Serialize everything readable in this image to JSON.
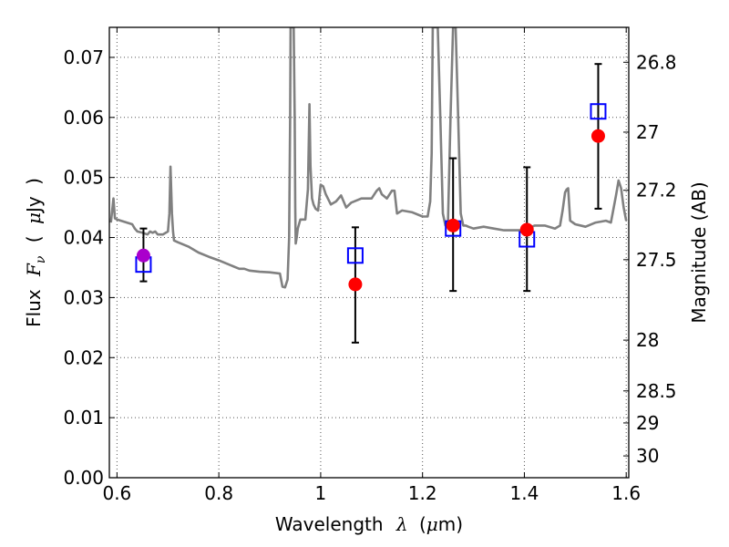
{
  "chart_data": {
    "type": "scatter",
    "xlabel_text": "Wavelength",
    "xlabel_symbol": "λ",
    "xlabel_unit_open": "(",
    "xlabel_unit_mu": "μ",
    "xlabel_unit_rest": "m)",
    "ylabel_text": "Flux",
    "ylabel_symbol": "F",
    "ylabel_subscript": "ν",
    "ylabel_unit_open": "(",
    "ylabel_unit_mu": "μ",
    "ylabel_unit_rest": "Jy",
    "ylabel_unit_close": ")",
    "y2label": "Magnitude (AB)",
    "xlim": [
      0.585,
      1.605
    ],
    "ylim": [
      0.0,
      0.075
    ],
    "grid": true,
    "x_ticks": [
      {
        "value": 0.6,
        "label": "0.6"
      },
      {
        "value": 0.8,
        "label": "0.8"
      },
      {
        "value": 1.0,
        "label": "1"
      },
      {
        "value": 1.2,
        "label": "1.2"
      },
      {
        "value": 1.4,
        "label": "1.4"
      },
      {
        "value": 1.6,
        "label": "1.6"
      }
    ],
    "y_ticks": [
      {
        "value": 0.0,
        "label": "0.00"
      },
      {
        "value": 0.01,
        "label": "0.01"
      },
      {
        "value": 0.02,
        "label": "0.02"
      },
      {
        "value": 0.03,
        "label": "0.03"
      },
      {
        "value": 0.04,
        "label": "0.04"
      },
      {
        "value": 0.05,
        "label": "0.05"
      },
      {
        "value": 0.06,
        "label": "0.06"
      },
      {
        "value": 0.07,
        "label": "0.07"
      }
    ],
    "y2_ticks": [
      {
        "mag": 26.8,
        "label": "26.8"
      },
      {
        "mag": 27.0,
        "label": "27"
      },
      {
        "mag": 27.2,
        "label": "27.2"
      },
      {
        "mag": 27.5,
        "label": "27.5"
      },
      {
        "mag": 28.0,
        "label": "28"
      },
      {
        "mag": 28.5,
        "label": "28.5"
      },
      {
        "mag": 29.0,
        "label": "29"
      },
      {
        "mag": 30.0,
        "label": "30"
      }
    ],
    "series": [
      {
        "kind": "line",
        "color": "#808080",
        "x": [
          0.588,
          0.593,
          0.596,
          0.6,
          0.63,
          0.635,
          0.64,
          0.65,
          0.66,
          0.665,
          0.67,
          0.675,
          0.68,
          0.69,
          0.7,
          0.703,
          0.705,
          0.708,
          0.71,
          0.712,
          0.72,
          0.74,
          0.76,
          0.78,
          0.8,
          0.82,
          0.84,
          0.85,
          0.86,
          0.88,
          0.9,
          0.92,
          0.925,
          0.93,
          0.935,
          0.938,
          0.94,
          0.941,
          0.944,
          0.947,
          0.949,
          0.95,
          0.951,
          0.953,
          0.955,
          0.96,
          0.97,
          0.975,
          0.978,
          0.98,
          0.983,
          0.986,
          0.99,
          0.995,
          1.0,
          1.005,
          1.01,
          1.02,
          1.03,
          1.04,
          1.05,
          1.06,
          1.08,
          1.1,
          1.11,
          1.115,
          1.12,
          1.13,
          1.14,
          1.145,
          1.15,
          1.16,
          1.18,
          1.2,
          1.21,
          1.215,
          1.218,
          1.22,
          1.222,
          1.225,
          1.23,
          1.235,
          1.24,
          1.245,
          1.25,
          1.255,
          1.26,
          1.265,
          1.27,
          1.275,
          1.28,
          1.285,
          1.29,
          1.3,
          1.32,
          1.34,
          1.36,
          1.4,
          1.42,
          1.44,
          1.46,
          1.47,
          1.475,
          1.48,
          1.483,
          1.486,
          1.49,
          1.5,
          1.52,
          1.54,
          1.56,
          1.57,
          1.58,
          1.585,
          1.59,
          1.595,
          1.6
        ],
        "y": [
          0.0425,
          0.0465,
          0.0432,
          0.043,
          0.0422,
          0.0415,
          0.041,
          0.0408,
          0.0405,
          0.041,
          0.0408,
          0.041,
          0.0405,
          0.0405,
          0.041,
          0.044,
          0.0518,
          0.044,
          0.041,
          0.0395,
          0.0392,
          0.0385,
          0.0375,
          0.0368,
          0.0362,
          0.0355,
          0.0348,
          0.0348,
          0.0345,
          0.0343,
          0.0342,
          0.034,
          0.0318,
          0.0317,
          0.033,
          0.04,
          0.06,
          0.075,
          0.075,
          0.075,
          0.06,
          0.045,
          0.039,
          0.04,
          0.0415,
          0.043,
          0.043,
          0.048,
          0.0622,
          0.052,
          0.0465,
          0.0455,
          0.0448,
          0.0445,
          0.0488,
          0.0485,
          0.0472,
          0.0455,
          0.046,
          0.047,
          0.045,
          0.0458,
          0.0465,
          0.0465,
          0.0478,
          0.0482,
          0.0472,
          0.0465,
          0.0478,
          0.0478,
          0.044,
          0.0445,
          0.0442,
          0.0435,
          0.0435,
          0.046,
          0.054,
          0.075,
          0.075,
          0.075,
          0.075,
          0.06,
          0.044,
          0.042,
          0.0425,
          0.06,
          0.075,
          0.075,
          0.06,
          0.044,
          0.042,
          0.042,
          0.0418,
          0.0415,
          0.0418,
          0.0415,
          0.0412,
          0.0412,
          0.042,
          0.042,
          0.0415,
          0.042,
          0.0445,
          0.0475,
          0.048,
          0.0482,
          0.0428,
          0.0422,
          0.0418,
          0.0425,
          0.0428,
          0.0425,
          0.047,
          0.0495,
          0.0482,
          0.045,
          0.0428
        ]
      },
      {
        "kind": "errorbar",
        "color": "#000000",
        "points": [
          {
            "x": 0.652,
            "ylow": 0.0327,
            "yhigh": 0.0415
          },
          {
            "x": 1.068,
            "ylow": 0.0225,
            "yhigh": 0.0417
          },
          {
            "x": 1.26,
            "ylow": 0.0311,
            "yhigh": 0.0532
          },
          {
            "x": 1.405,
            "ylow": 0.0311,
            "yhigh": 0.0517
          },
          {
            "x": 1.545,
            "ylow": 0.0448,
            "yhigh": 0.0689
          }
        ]
      },
      {
        "kind": "squares",
        "color": "#0000ff",
        "points": [
          {
            "x": 0.652,
            "y": 0.0355
          },
          {
            "x": 1.068,
            "y": 0.037
          },
          {
            "x": 1.26,
            "y": 0.0415
          },
          {
            "x": 1.405,
            "y": 0.0397
          },
          {
            "x": 1.545,
            "y": 0.061
          }
        ]
      },
      {
        "kind": "dots",
        "color": "#ff0000",
        "points": [
          {
            "x": 1.068,
            "y": 0.0322
          },
          {
            "x": 1.26,
            "y": 0.042
          },
          {
            "x": 1.405,
            "y": 0.0413
          },
          {
            "x": 1.545,
            "y": 0.0569
          }
        ]
      },
      {
        "kind": "dots",
        "color": "#aa00cc",
        "points": [
          {
            "x": 0.652,
            "y": 0.037
          }
        ]
      }
    ]
  }
}
